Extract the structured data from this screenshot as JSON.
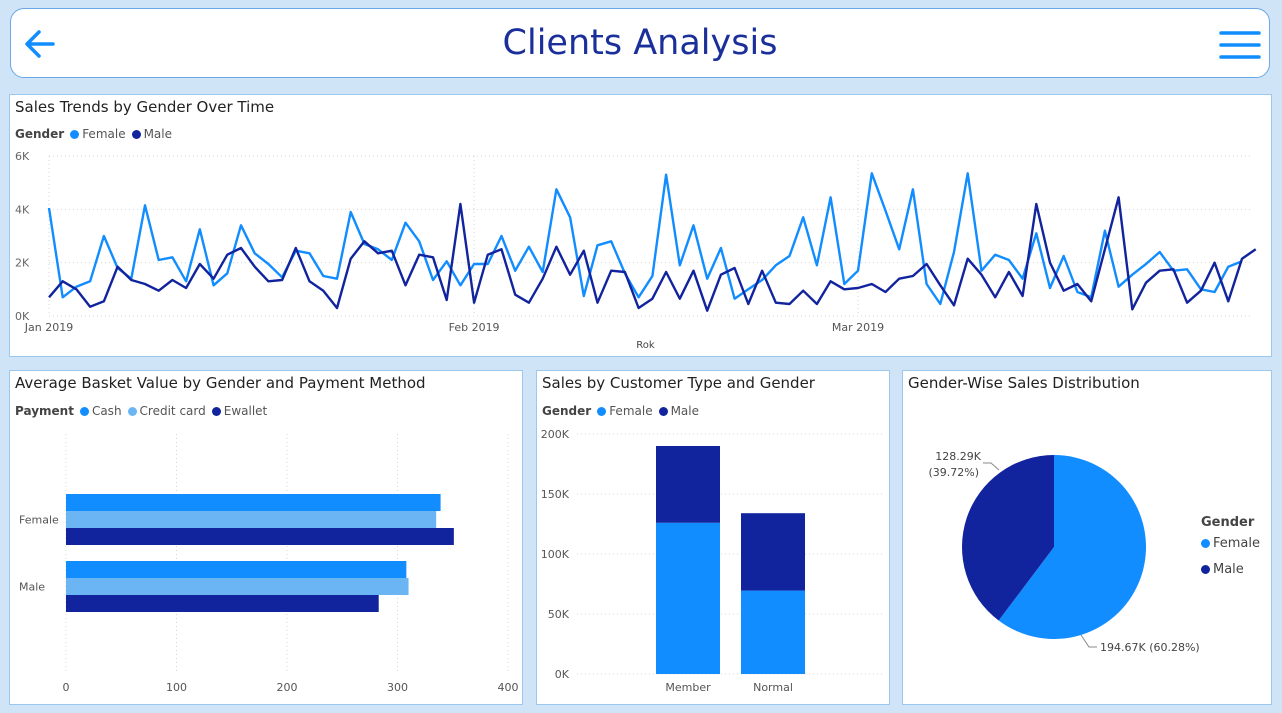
{
  "header": {
    "title": "Clients Analysis",
    "back_icon": "arrow-left-icon",
    "menu_icon": "hamburger-menu-icon"
  },
  "colors": {
    "female": "#118dff",
    "male": "#12239e",
    "cash": "#118dff",
    "credit_card": "#6cb5f5",
    "ewallet": "#12239e",
    "accent": "#1b2f9a"
  },
  "chart_data": [
    {
      "type": "line",
      "title": "Sales Trends by Gender Over Time",
      "legend_title": "Gender",
      "xlabel": "Rok",
      "ylabel": "",
      "ylim": [
        0,
        6000
      ],
      "y_ticks": [
        "0K",
        "2K",
        "4K",
        "6K"
      ],
      "x_ticks": [
        "Jan 2019",
        "Feb 2019",
        "Mar 2019"
      ],
      "legend_position": "top-left",
      "grid": true,
      "series": [
        {
          "name": "Female",
          "values": [
            4050,
            700,
            1100,
            1300,
            3000,
            1800,
            1400,
            4150,
            2100,
            2200,
            1300,
            3250,
            1150,
            1600,
            3400,
            2350,
            1950,
            1450,
            2450,
            2350,
            1500,
            1400,
            3900,
            2700,
            2500,
            2100,
            3500,
            2800,
            1350,
            2050,
            1150,
            1950,
            1950,
            3000,
            1700,
            2600,
            1650,
            4750,
            3700,
            750,
            2650,
            2800,
            1600,
            700,
            1500,
            5300,
            1900,
            3400,
            1400,
            2550,
            650,
            1000,
            1350,
            1900,
            2250,
            3700,
            1900,
            4450,
            1200,
            1700,
            5350,
            3950,
            2500,
            4750,
            1200,
            450,
            2400,
            5350,
            1700,
            2300,
            2100,
            1400,
            3100,
            1050,
            2250,
            900,
            700,
            3200,
            1100,
            1550,
            1950,
            2400,
            1700,
            1750,
            1000,
            900,
            1850,
            2050
          ]
        },
        {
          "name": "Male",
          "values": [
            700,
            1300,
            1000,
            350,
            550,
            1850,
            1350,
            1200,
            950,
            1350,
            1050,
            1950,
            1400,
            2300,
            2550,
            1850,
            1300,
            1350,
            2550,
            1300,
            950,
            300,
            2150,
            2800,
            2350,
            2450,
            1150,
            2300,
            2200,
            600,
            4200,
            500,
            2300,
            2500,
            800,
            500,
            1400,
            2600,
            1550,
            2450,
            500,
            1700,
            1650,
            300,
            650,
            1650,
            650,
            1700,
            200,
            1550,
            1800,
            450,
            1700,
            500,
            450,
            950,
            450,
            1300,
            1000,
            1050,
            1200,
            900,
            1400,
            1500,
            1950,
            1150,
            400,
            2150,
            1550,
            700,
            1650,
            750,
            4200,
            2000,
            950,
            1200,
            550,
            2500,
            4450,
            250,
            1250,
            1700,
            1750,
            500,
            950,
            2000,
            550,
            2150,
            2500
          ]
        }
      ]
    },
    {
      "type": "bar",
      "orientation": "horizontal",
      "title": "Average Basket Value by Gender and Payment Method",
      "legend_title": "Payment",
      "legend_position": "top-left",
      "categories": [
        "Female",
        "Male"
      ],
      "x_ticks": [
        "0",
        "100",
        "200",
        "300",
        "400"
      ],
      "xlim": [
        0,
        400
      ],
      "grid": true,
      "series": [
        {
          "name": "Cash",
          "values": [
            339,
            308
          ]
        },
        {
          "name": "Credit card",
          "values": [
            335,
            310
          ]
        },
        {
          "name": "Ewallet",
          "values": [
            351,
            283
          ]
        }
      ]
    },
    {
      "type": "bar",
      "stacked": true,
      "title": "Sales by Customer Type and Gender",
      "legend_title": "Gender",
      "legend_position": "top-left",
      "categories": [
        "Member",
        "Normal"
      ],
      "y_ticks": [
        "0K",
        "50K",
        "100K",
        "150K",
        "200K"
      ],
      "ylim": [
        0,
        200000
      ],
      "grid": true,
      "series": [
        {
          "name": "Female",
          "values": [
            126000,
            69500
          ]
        },
        {
          "name": "Male",
          "values": [
            64000,
            64500
          ]
        }
      ]
    },
    {
      "type": "pie",
      "title": "Gender-Wise Sales Distribution",
      "legend_title": "Gender",
      "legend_position": "right",
      "slices": [
        {
          "name": "Female",
          "value": 194670,
          "label": "194.67K (60.28%)"
        },
        {
          "name": "Male",
          "value": 128290,
          "label": "128.29K",
          "pct_label": "(39.72%)"
        }
      ]
    }
  ]
}
